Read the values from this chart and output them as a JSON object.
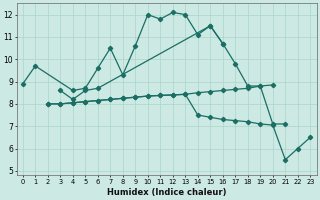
{
  "xlabel": "Humidex (Indice chaleur)",
  "xlim": [
    -0.5,
    23.5
  ],
  "ylim": [
    4.8,
    12.5
  ],
  "yticks": [
    5,
    6,
    7,
    8,
    9,
    10,
    11,
    12
  ],
  "xticks": [
    0,
    1,
    2,
    3,
    4,
    5,
    6,
    7,
    8,
    9,
    10,
    11,
    12,
    13,
    14,
    15,
    16,
    17,
    18,
    19,
    20,
    21,
    22,
    23
  ],
  "bg_color": "#cce9e3",
  "grid_color": "#aad4cc",
  "line_color": "#1a6e64",
  "line1_x": [
    0,
    1,
    4,
    5,
    6,
    7,
    8,
    9,
    10,
    11,
    12,
    13,
    14,
    15,
    16
  ],
  "line1_y": [
    8.9,
    9.7,
    8.6,
    8.7,
    9.6,
    10.5,
    9.3,
    10.6,
    12.0,
    11.8,
    12.1,
    12.0,
    11.1,
    11.5,
    10.7
  ],
  "line2_x": [
    3,
    4,
    5,
    6,
    15,
    16,
    17,
    18,
    19,
    20,
    21
  ],
  "line2_y": [
    8.6,
    8.2,
    8.6,
    8.7,
    11.5,
    10.7,
    9.8,
    8.8,
    8.8,
    7.1,
    7.1
  ],
  "line3_x": [
    2,
    3,
    4,
    5,
    6,
    7,
    8,
    9,
    10,
    11,
    12,
    13,
    14,
    15,
    16,
    17,
    18,
    19,
    20,
    21,
    22,
    23
  ],
  "line3_y": [
    8.0,
    8.0,
    8.05,
    8.1,
    8.15,
    8.2,
    8.25,
    8.3,
    8.35,
    8.38,
    8.4,
    8.43,
    7.5,
    7.4,
    7.3,
    7.25,
    7.2,
    7.1,
    7.05,
    5.5,
    6.0,
    6.5
  ],
  "line4_x": [
    2,
    3,
    4,
    5,
    6,
    7,
    8,
    9,
    10,
    11,
    12,
    13,
    14,
    15,
    16,
    17,
    18,
    19,
    20
  ],
  "line4_y": [
    8.0,
    8.0,
    8.05,
    8.1,
    8.15,
    8.2,
    8.25,
    8.3,
    8.35,
    8.38,
    8.4,
    8.43,
    8.5,
    8.55,
    8.6,
    8.65,
    8.7,
    8.8,
    8.85
  ]
}
